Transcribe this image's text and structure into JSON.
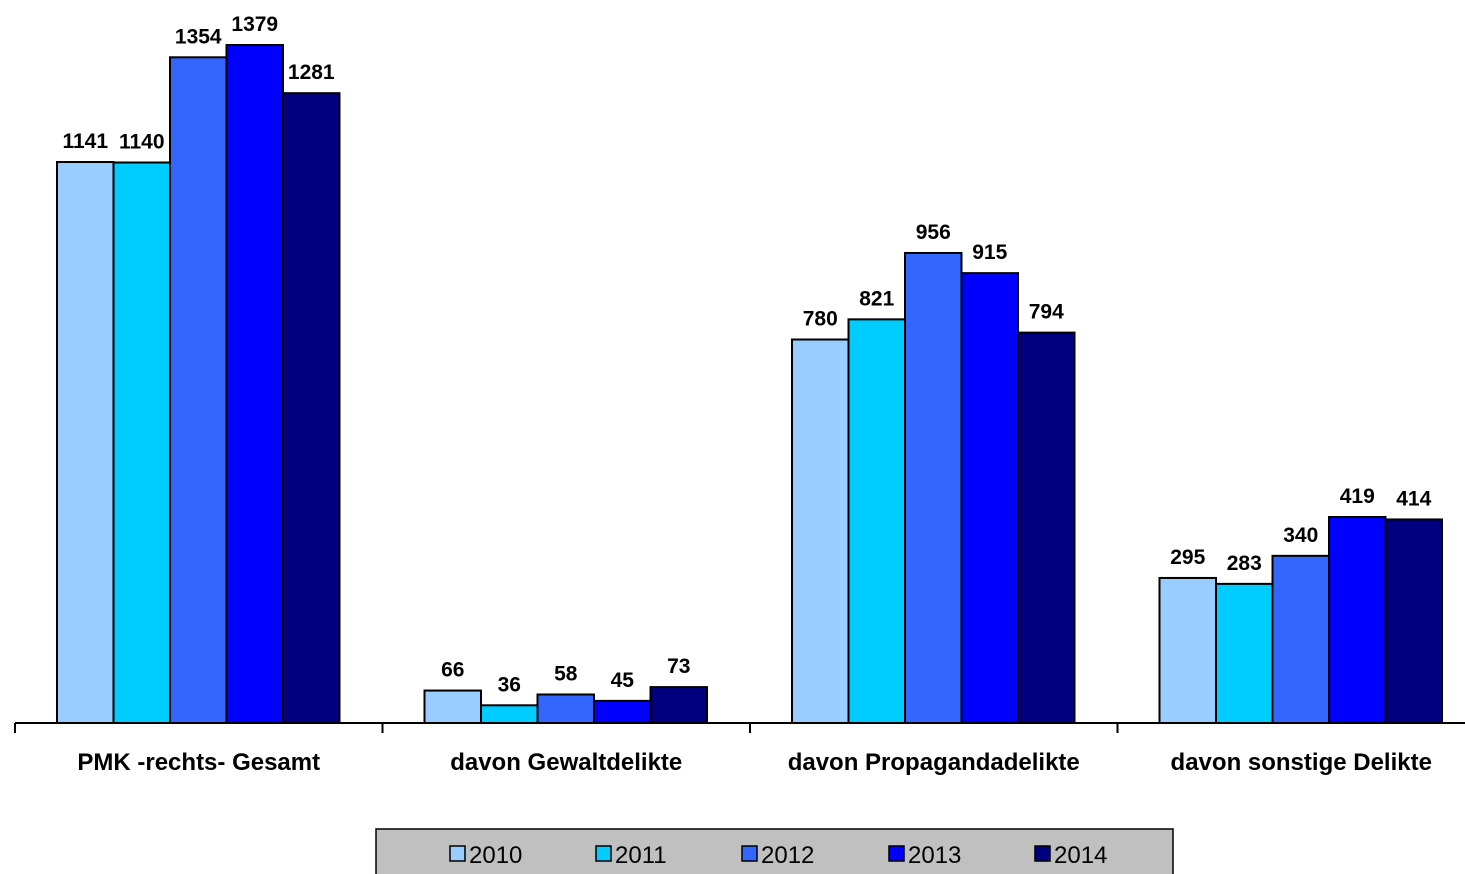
{
  "chart_data": {
    "type": "bar",
    "categories": [
      "PMK -rechts- Gesamt",
      "davon Gewaltdelikte",
      "davon Propagandadelikte",
      "davon sonstige Delikte"
    ],
    "series": [
      {
        "name": "2010",
        "color": "#99ccff",
        "values": [
          1141,
          66,
          780,
          295
        ]
      },
      {
        "name": "2011",
        "color": "#00ccff",
        "values": [
          1140,
          36,
          821,
          283
        ]
      },
      {
        "name": "2012",
        "color": "#3366ff",
        "values": [
          1354,
          58,
          956,
          340
        ]
      },
      {
        "name": "2013",
        "color": "#0000ff",
        "values": [
          1379,
          45,
          915,
          419
        ]
      },
      {
        "name": "2014",
        "color": "#000080",
        "values": [
          1281,
          73,
          794,
          414
        ]
      }
    ],
    "title": "",
    "xlabel": "",
    "ylabel": "",
    "ylim": [
      0,
      1400
    ],
    "grid": false,
    "data_labels": true,
    "legend_position": "bottom"
  }
}
